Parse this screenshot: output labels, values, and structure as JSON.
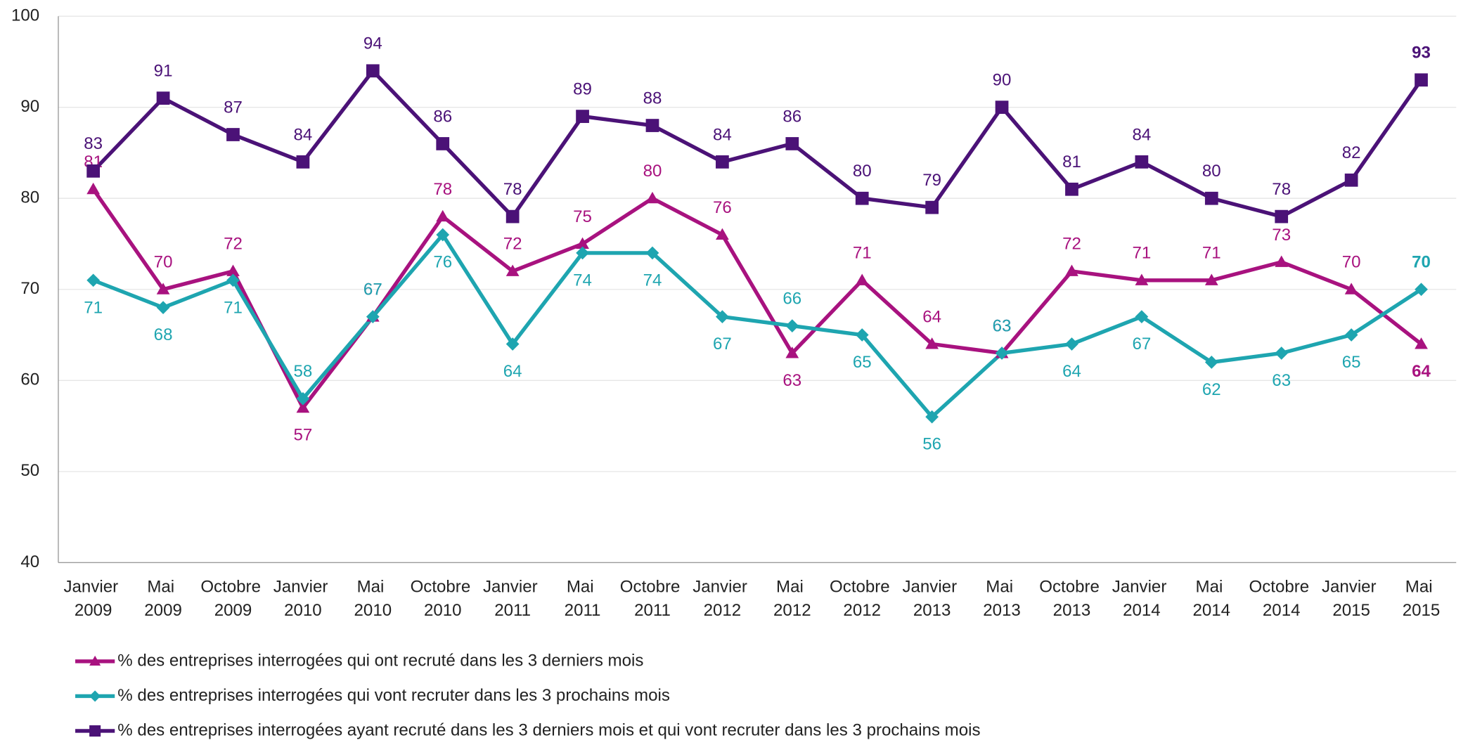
{
  "chart_data": {
    "type": "line",
    "categories": [
      "Janvier 2009",
      "Mai 2009",
      "Octobre 2009",
      "Janvier 2010",
      "Mai 2010",
      "Octobre 2010",
      "Janvier 2011",
      "Mai 2011",
      "Octobre 2011",
      "Janvier 2012",
      "Mai 2012",
      "Octobre 2012",
      "Janvier 2013",
      "Mai 2013",
      "Octobre 2013",
      "Janvier 2014",
      "Mai 2014",
      "Octobre 2014",
      "Janvier 2015",
      "Mai 2015"
    ],
    "series": [
      {
        "name": "% des entreprises interrogées qui ont recruté dans les 3 derniers mois",
        "color": "#a8127f",
        "marker": "triangle",
        "values": [
          81,
          70,
          72,
          57,
          67,
          78,
          72,
          75,
          80,
          76,
          63,
          71,
          64,
          63,
          72,
          71,
          71,
          73,
          70,
          64
        ]
      },
      {
        "name": "% des entreprises interrogées qui vont recruter dans les 3 prochains mois",
        "color": "#1ea5b0",
        "marker": "diamond",
        "values": [
          71,
          68,
          71,
          58,
          67,
          76,
          64,
          74,
          74,
          67,
          66,
          65,
          56,
          63,
          64,
          67,
          62,
          63,
          65,
          70
        ]
      },
      {
        "name": "% des entreprises interrogées ayant recruté dans les 3 derniers mois et qui vont recruter dans les 3 prochains mois",
        "color": "#4b1277",
        "marker": "square",
        "values": [
          83,
          91,
          87,
          84,
          94,
          86,
          78,
          89,
          88,
          84,
          86,
          80,
          79,
          90,
          81,
          84,
          80,
          78,
          82,
          93
        ]
      }
    ],
    "ylim": [
      40,
      100
    ],
    "yticks": [
      40,
      50,
      60,
      70,
      80,
      90,
      100
    ],
    "grid": true
  }
}
